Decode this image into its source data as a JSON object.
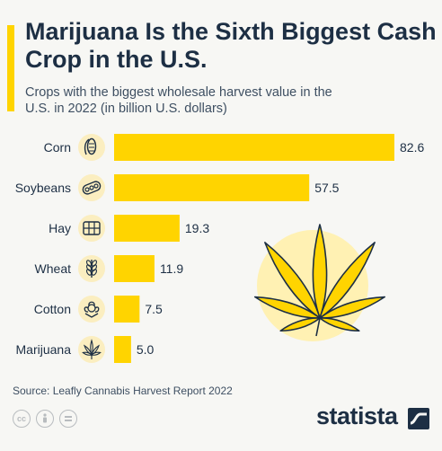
{
  "header": {
    "title": "Marijuana Is the Sixth Biggest Cash Crop in the U.S.",
    "subtitle": "Crops with the biggest wholesale harvest value in the U.S. in 2022 (in billion U.S. dollars)"
  },
  "footer": {
    "source": "Source: Leafly Cannabis Harvest Report 2022",
    "brand": "statista",
    "license_icons": [
      "creative-commons-icon",
      "attribution-icon",
      "no-derivatives-icon"
    ]
  },
  "colors": {
    "bar": "#ffd400",
    "title": "#1d2f44",
    "text": "#3e4f62",
    "leaf_circle": "#fff1b3",
    "icon_circle": "#fbeec0"
  },
  "chart_data": {
    "type": "bar",
    "orientation": "horizontal",
    "categories": [
      "Corn",
      "Soybeans",
      "Hay",
      "Wheat",
      "Cotton",
      "Marijuana"
    ],
    "values": [
      82.6,
      57.5,
      19.3,
      11.9,
      7.5,
      5.0
    ],
    "value_labels": [
      "82.6",
      "57.5",
      "19.3",
      "11.9",
      "7.5",
      "5.0"
    ],
    "icons": [
      "corn-icon",
      "soybean-icon",
      "hay-icon",
      "wheat-icon",
      "cotton-icon",
      "marijuana-leaf-icon"
    ],
    "xlim": [
      0,
      82.6
    ],
    "grid": false,
    "legend": "none"
  }
}
